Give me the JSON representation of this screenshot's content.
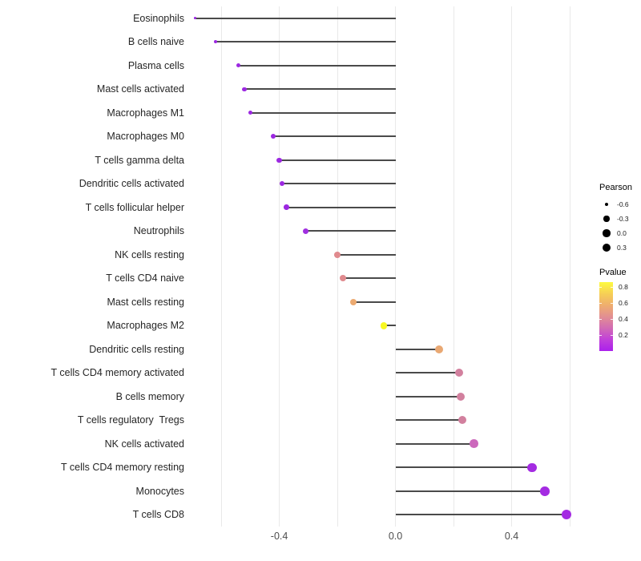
{
  "figure": {
    "background": "#ffffff"
  },
  "chart_data": {
    "type": "scatter",
    "subtype": "lollipop",
    "orientation": "horizontal",
    "title": "",
    "xlabel": "",
    "ylabel": "",
    "grid": true,
    "xlim": [
      -0.705,
      0.655
    ],
    "x_ticks": [
      "-0.4",
      "0.0",
      "0.4"
    ],
    "x_tick_values": [
      -0.4,
      0.0,
      0.4
    ],
    "gridline_values": [
      -0.6,
      -0.4,
      -0.2,
      0.0,
      0.2,
      0.4,
      0.6
    ],
    "grid_color": "#e9e9e9",
    "stem_color": "#4a4a4a",
    "categories": [
      "Eosinophils",
      "B cells naive",
      "Plasma cells",
      "Mast cells activated",
      "Macrophages M1",
      "Macrophages M0",
      "T cells gamma delta",
      "Dendritic cells activated",
      "T cells follicular helper",
      "Neutrophils",
      "NK cells resting",
      "T cells CD4 naive",
      "Mast cells resting",
      "Macrophages M2",
      "Dendritic cells resting",
      "T cells CD4 memory activated",
      "B cells memory",
      "T cells regulatory  Tregs",
      "NK cells activated",
      "T cells CD4 memory resting",
      "Monocytes",
      "T cells CD8"
    ],
    "series": [
      {
        "name": "Pearson",
        "values": [
          -0.69,
          -0.62,
          -0.54,
          -0.52,
          -0.5,
          -0.42,
          -0.4,
          -0.39,
          -0.375,
          -0.31,
          -0.2,
          -0.18,
          -0.145,
          -0.04,
          0.15,
          0.22,
          0.225,
          0.23,
          0.27,
          0.47,
          0.515,
          0.59
        ]
      }
    ],
    "point_colors": [
      "#9c28e1",
      "#9c28e1",
      "#9c28e1",
      "#9c28e1",
      "#9c28e1",
      "#9c28e1",
      "#9c28e1",
      "#9c28e1",
      "#9c28e1",
      "#a030e0",
      "#e08a8e",
      "#e08a8e",
      "#ecaa71",
      "#f8f823",
      "#e9a873",
      "#d2809e",
      "#d2809e",
      "#d2809e",
      "#cc68bc",
      "#a42be2",
      "#a42be2",
      "#a42be2"
    ],
    "size_encoding": "Pearson",
    "color_encoding": "Pvalue",
    "legend_position": "right",
    "legends": {
      "size": {
        "title": "Pearson",
        "items": [
          "-0.6",
          "-0.3",
          "0.0",
          "0.3"
        ],
        "item_values": [
          -0.6,
          -0.3,
          0.0,
          0.3
        ],
        "dot_color": "#000000"
      },
      "color": {
        "title": "Pvalue",
        "ticks": [
          "0.8",
          "0.6",
          "0.4",
          "0.2"
        ],
        "tick_values": [
          0.8,
          0.6,
          0.4,
          0.2
        ],
        "bar_range": [
          0.0,
          0.865
        ],
        "gradient_top_to_bottom": [
          "#fdfa3f",
          "#f6cf55",
          "#efae6e",
          "#e28f92",
          "#d26bb4",
          "#c140d9",
          "#ab20ec"
        ]
      }
    }
  }
}
